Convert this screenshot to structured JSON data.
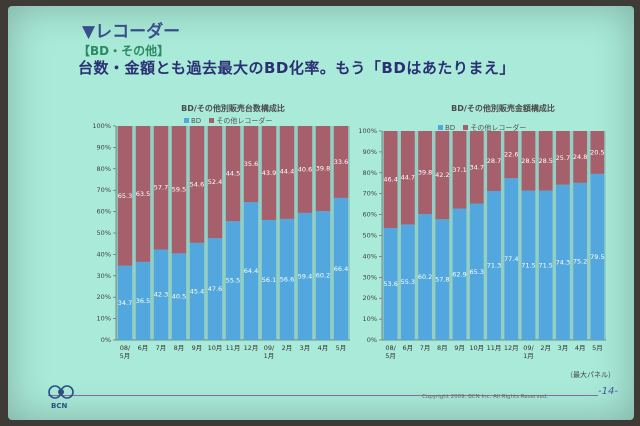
{
  "slide": {
    "heading": "▼レコーダー",
    "subheading": "【BD・その他】",
    "headline": "台数・金額とも過去最大のBD化率。もう「BDはあたりまえ」",
    "copyright": "Copyright 2009. BCN Inc. All Rights Reserved.",
    "page_number": "-14-",
    "logo_text": "BCN",
    "note": "（最大パネル）"
  },
  "chart_data": [
    {
      "type": "bar",
      "stacked": true,
      "title": "BD/その他別販売台数構成比",
      "legend": [
        "BD",
        "その他レコーダー"
      ],
      "colors": {
        "bd": "#52a8de",
        "other": "#a5606c"
      },
      "categories": [
        "08/\n5月",
        "6月",
        "7月",
        "8月",
        "9月",
        "10月",
        "11月",
        "12月",
        "09/\n1月",
        "2月",
        "3月",
        "4月",
        "5月"
      ],
      "series": [
        {
          "name": "BD",
          "values": [
            34.7,
            36.5,
            42.3,
            40.5,
            45.4,
            47.6,
            55.5,
            64.4,
            56.1,
            56.6,
            59.4,
            60.2,
            66.4
          ]
        },
        {
          "name": "その他レコーダー",
          "values": [
            65.3,
            63.5,
            57.7,
            59.5,
            54.6,
            52.4,
            44.5,
            35.6,
            43.9,
            44.4,
            40.6,
            39.8,
            33.6
          ]
        }
      ],
      "ylim": [
        0,
        100
      ],
      "yticks": [
        "0%",
        "10%",
        "20%",
        "30%",
        "40%",
        "50%",
        "60%",
        "70%",
        "80%",
        "90%",
        "100%"
      ]
    },
    {
      "type": "bar",
      "stacked": true,
      "title": "BD/その他別販売金額構成比",
      "legend": [
        "BD",
        "その他レコーダー"
      ],
      "colors": {
        "bd": "#52a8de",
        "other": "#a5606c"
      },
      "categories": [
        "08/\n5月",
        "6月",
        "7月",
        "8月",
        "9月",
        "10月",
        "11月",
        "12月",
        "09/\n1月",
        "2月",
        "3月",
        "4月",
        "5月"
      ],
      "series": [
        {
          "name": "BD",
          "values": [
            53.6,
            55.3,
            60.2,
            57.8,
            62.9,
            65.3,
            71.3,
            77.4,
            71.5,
            71.5,
            74.3,
            75.2,
            79.5
          ]
        },
        {
          "name": "その他レコーダー",
          "values": [
            46.4,
            44.7,
            39.8,
            42.2,
            37.1,
            34.7,
            28.7,
            22.6,
            28.5,
            28.5,
            25.7,
            24.8,
            20.5
          ]
        }
      ],
      "ylim": [
        0,
        100
      ],
      "yticks": [
        "0%",
        "10%",
        "20%",
        "30%",
        "40%",
        "50%",
        "60%",
        "70%",
        "80%",
        "90%",
        "100%"
      ]
    }
  ]
}
